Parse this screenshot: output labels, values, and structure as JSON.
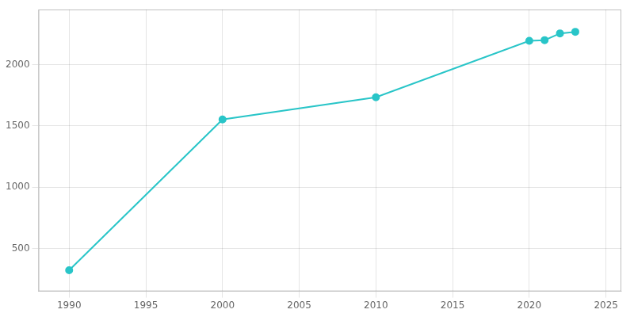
{
  "chart_data": {
    "type": "line",
    "x": [
      1990,
      2000,
      2010,
      2020,
      2021,
      2022,
      2023
    ],
    "values": [
      322,
      1553,
      1734,
      2194,
      2200,
      2255,
      2268
    ],
    "color": "#29c5c8",
    "marker": "circle",
    "xlim": [
      1988,
      2026
    ],
    "xticks": [
      1990,
      1995,
      2000,
      2005,
      2010,
      2015,
      2020,
      2025
    ],
    "ylim": [
      150,
      2450
    ],
    "yticks": [
      500,
      1000,
      1500,
      2000
    ],
    "grid": true
  }
}
